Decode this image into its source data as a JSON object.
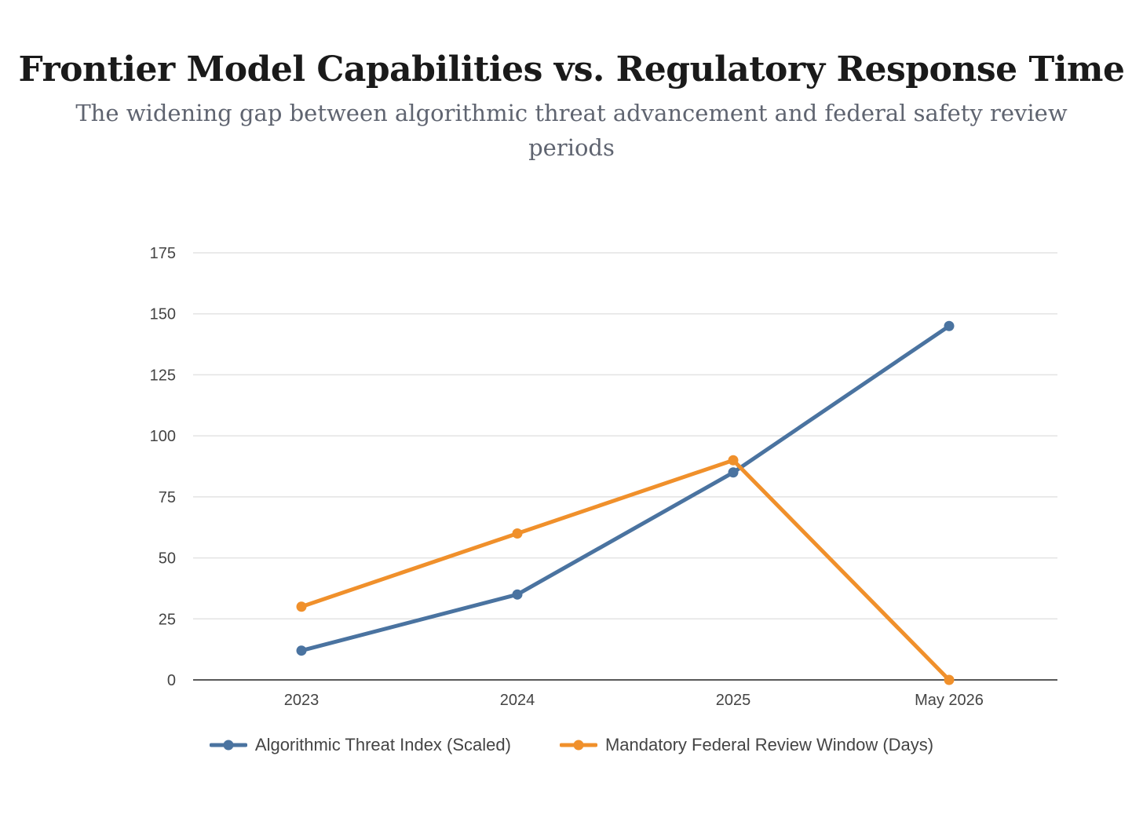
{
  "chart_data": {
    "type": "line",
    "title": "Frontier Model Capabilities vs. Regulatory Response Time",
    "subtitle": "The widening gap between algorithmic threat advancement and federal safety review periods",
    "xlabel": "",
    "ylabel": "",
    "categories": [
      "2023",
      "2024",
      "2025",
      "May 2026"
    ],
    "ylim": [
      0,
      175
    ],
    "yticks": [
      0,
      25,
      50,
      75,
      100,
      125,
      150,
      175
    ],
    "grid": true,
    "legend": "bottom",
    "series": [
      {
        "name": "Algorithmic Threat Index (Scaled)",
        "values": [
          12,
          35,
          85,
          145
        ],
        "color": "#4a73a0"
      },
      {
        "name": "Mandatory Federal Review Window (Days)",
        "values": [
          30,
          60,
          90,
          0
        ],
        "color": "#f0902b"
      }
    ]
  }
}
